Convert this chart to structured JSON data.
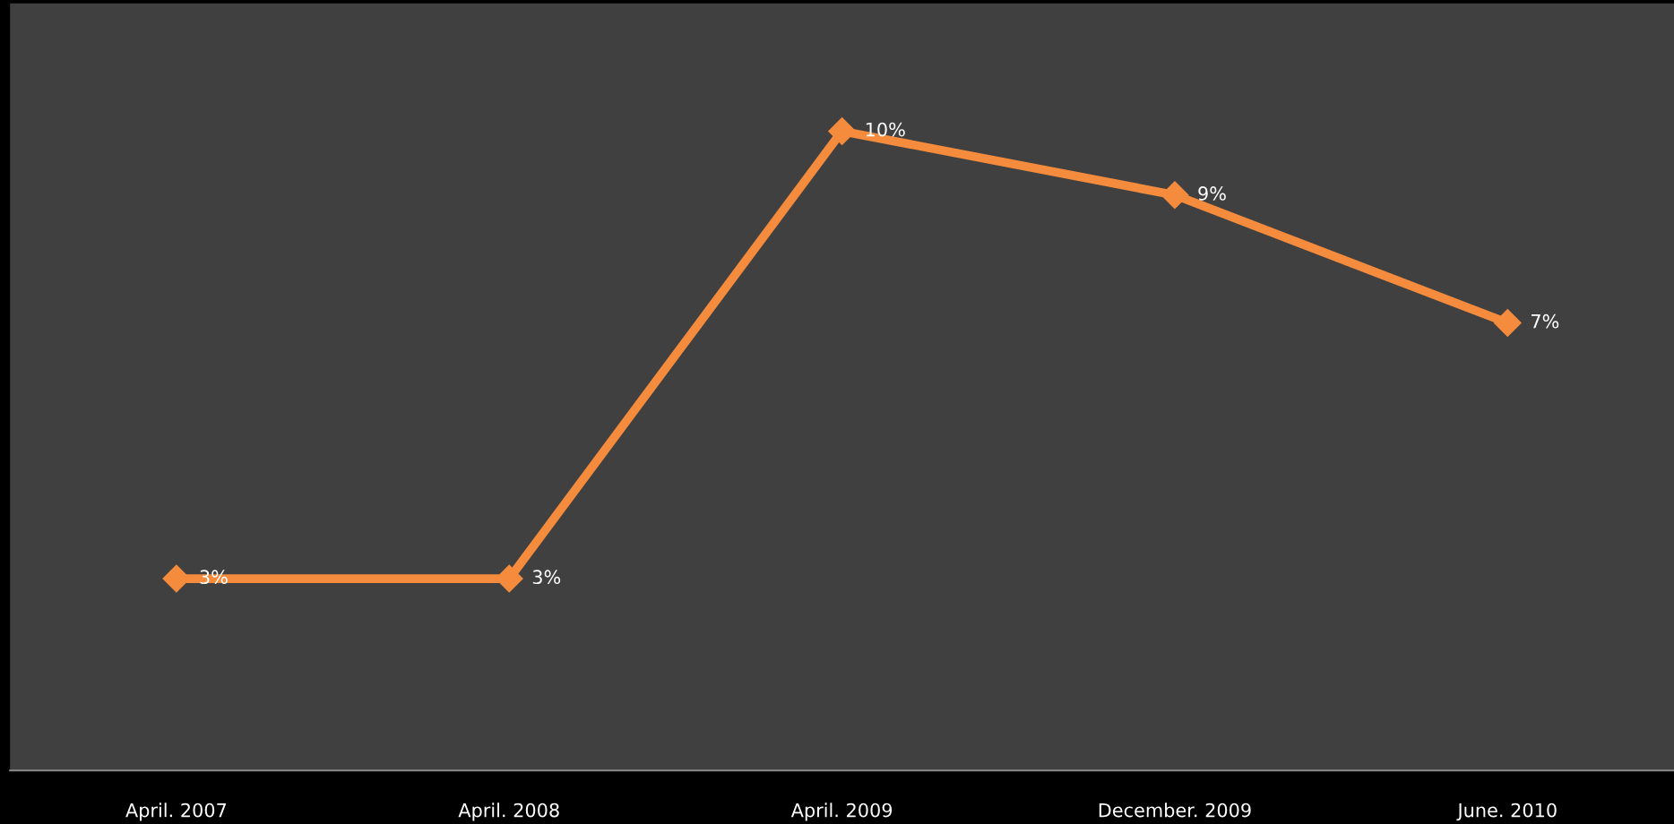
{
  "chart_data": {
    "type": "line",
    "categories": [
      "April. 2007",
      "April. 2008",
      "April. 2009",
      "December. 2009",
      "June. 2010"
    ],
    "series": [
      {
        "color": "#f58b3c",
        "values": [
          3,
          3,
          10,
          9,
          7
        ],
        "value_labels": [
          "3%",
          "3%",
          "10%",
          "9%",
          "7%"
        ]
      }
    ],
    "marker": "diamond",
    "line_style": "solid",
    "grid": false,
    "legend": false,
    "tick_labels": "x"
  }
}
